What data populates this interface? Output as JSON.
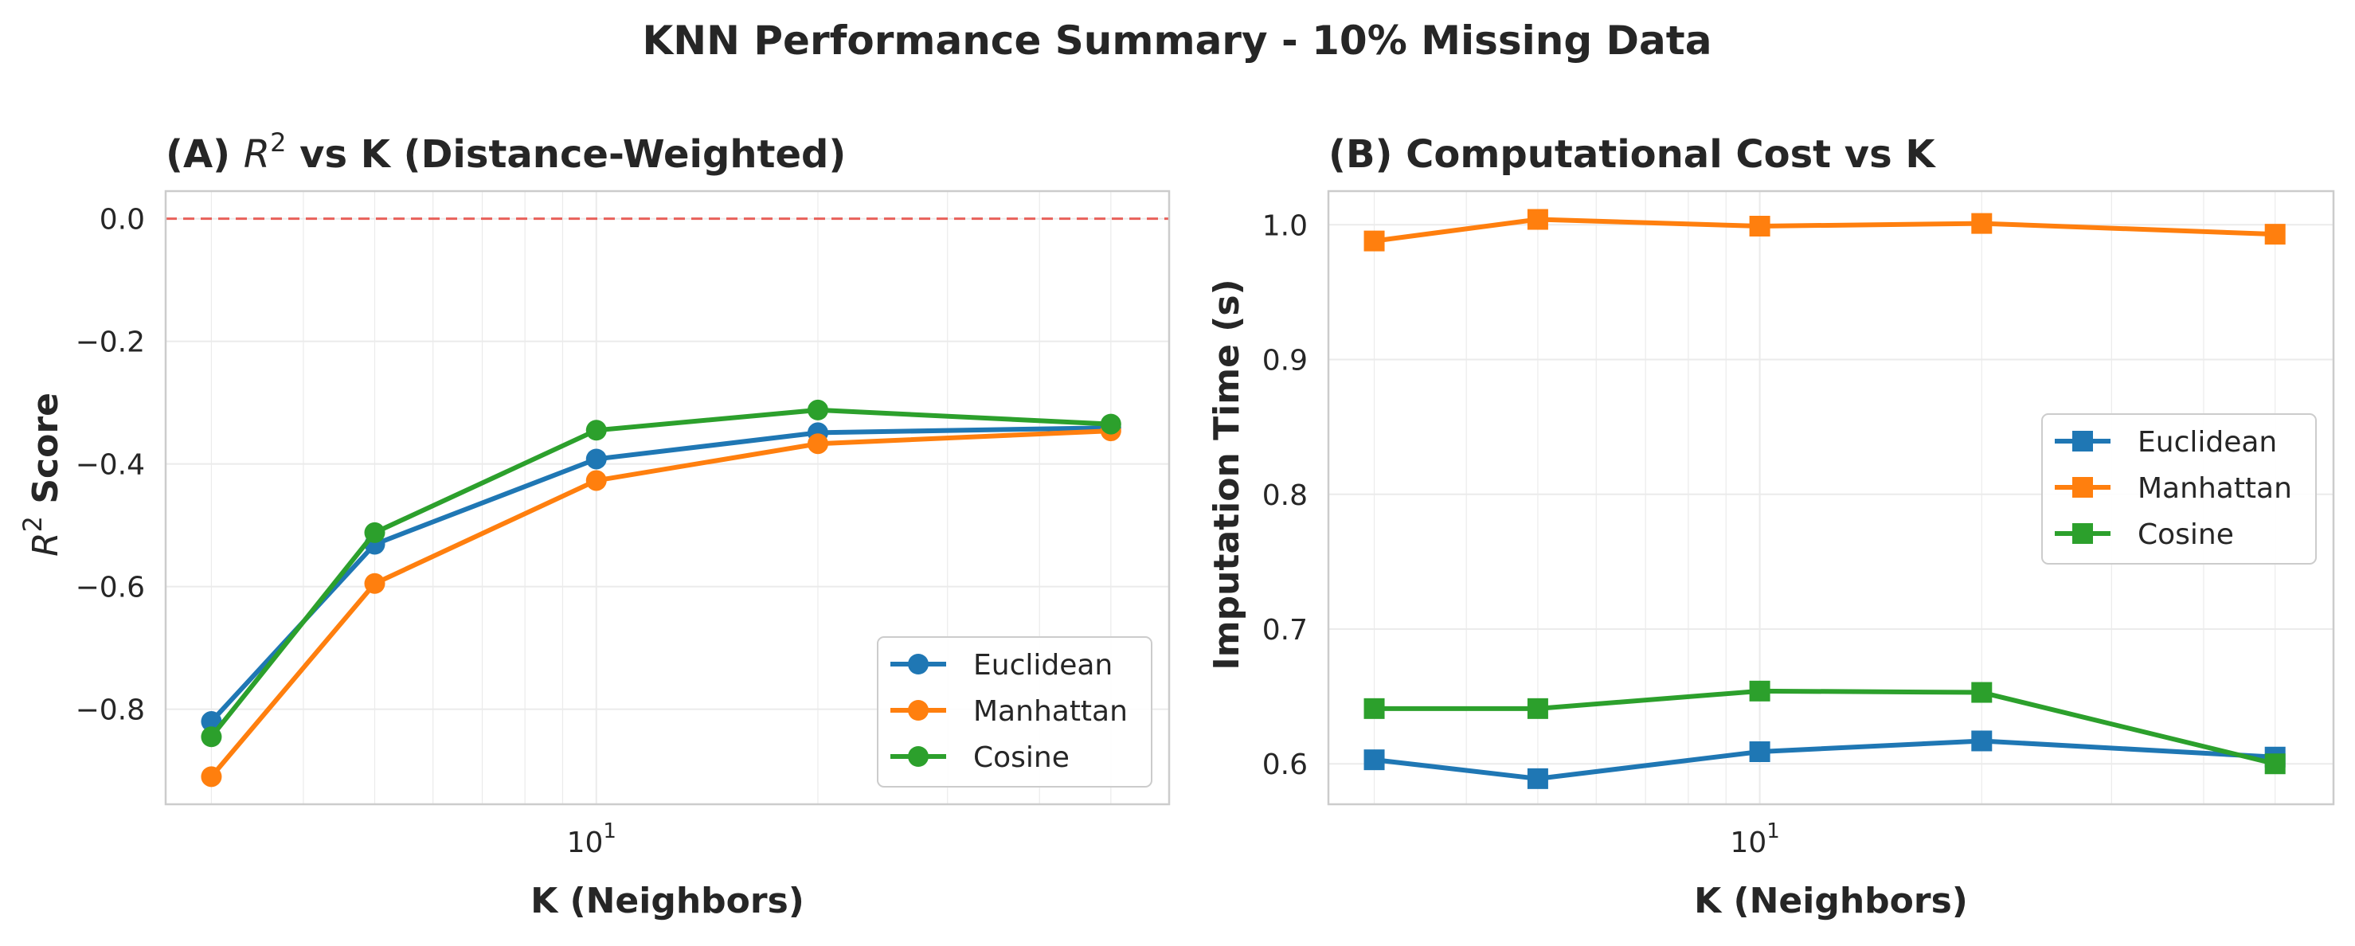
{
  "figure": {
    "suptitle": "KNN Performance Summary - 10% Missing Data"
  },
  "colors": {
    "Euclidean": "#1f77b4",
    "Manhattan": "#ff7f0e",
    "Cosine": "#2ca02c",
    "reference_line": "#e8605a",
    "grid": "#ebebeb",
    "spine": "#cccccc"
  },
  "chart_data": [
    {
      "type": "line",
      "title_prefix": "(A) ",
      "title_math": "R",
      "title_math_sup": "2",
      "title_suffix": " vs K (Distance-Weighted)",
      "xlabel": "K (Neighbors)",
      "ylabel_math": "R",
      "ylabel_math_sup": "2",
      "ylabel_suffix": " Score",
      "x_scale": "log",
      "x": [
        3,
        5,
        10,
        20,
        50
      ],
      "xlim": [
        2.6,
        60
      ],
      "x_ticks": [
        {
          "value": 10,
          "base": "10",
          "exp": "1"
        }
      ],
      "ylim": [
        -0.955,
        0.045
      ],
      "y_ticks": [
        {
          "value": 0.0,
          "label": "0.0"
        },
        {
          "value": -0.2,
          "label": "−0.2"
        },
        {
          "value": -0.4,
          "label": "−0.4"
        },
        {
          "value": -0.6,
          "label": "−0.6"
        },
        {
          "value": -0.8,
          "label": "−0.8"
        }
      ],
      "marker": "circle",
      "reference_line": {
        "y": 0.0,
        "style": "dashed"
      },
      "legend_position": "lower-right",
      "grid": true,
      "series": [
        {
          "name": "Euclidean",
          "values": [
            -0.82,
            -0.531,
            -0.392,
            -0.349,
            -0.341
          ]
        },
        {
          "name": "Manhattan",
          "values": [
            -0.91,
            -0.595,
            -0.427,
            -0.367,
            -0.346
          ]
        },
        {
          "name": "Cosine",
          "values": [
            -0.845,
            -0.512,
            -0.345,
            -0.312,
            -0.335
          ]
        }
      ]
    },
    {
      "type": "line",
      "title": "(B) Computational Cost vs K",
      "xlabel": "K (Neighbors)",
      "ylabel": "Imputation Time (s)",
      "x_scale": "log",
      "x": [
        3,
        5,
        10,
        20,
        50
      ],
      "xlim": [
        2.6,
        60
      ],
      "x_ticks": [
        {
          "value": 10,
          "base": "10",
          "exp": "1"
        }
      ],
      "ylim": [
        0.57,
        1.025
      ],
      "y_ticks": [
        {
          "value": 0.6,
          "label": "0.6"
        },
        {
          "value": 0.7,
          "label": "0.7"
        },
        {
          "value": 0.8,
          "label": "0.8"
        },
        {
          "value": 0.9,
          "label": "0.9"
        },
        {
          "value": 1.0,
          "label": "1.0"
        }
      ],
      "marker": "square",
      "legend_position": "center-right",
      "grid": true,
      "series": [
        {
          "name": "Euclidean",
          "values": [
            0.603,
            0.589,
            0.609,
            0.617,
            0.605
          ]
        },
        {
          "name": "Manhattan",
          "values": [
            0.988,
            1.004,
            0.999,
            1.001,
            0.993
          ]
        },
        {
          "name": "Cosine",
          "values": [
            0.641,
            0.641,
            0.654,
            0.653,
            0.6
          ]
        }
      ]
    }
  ]
}
